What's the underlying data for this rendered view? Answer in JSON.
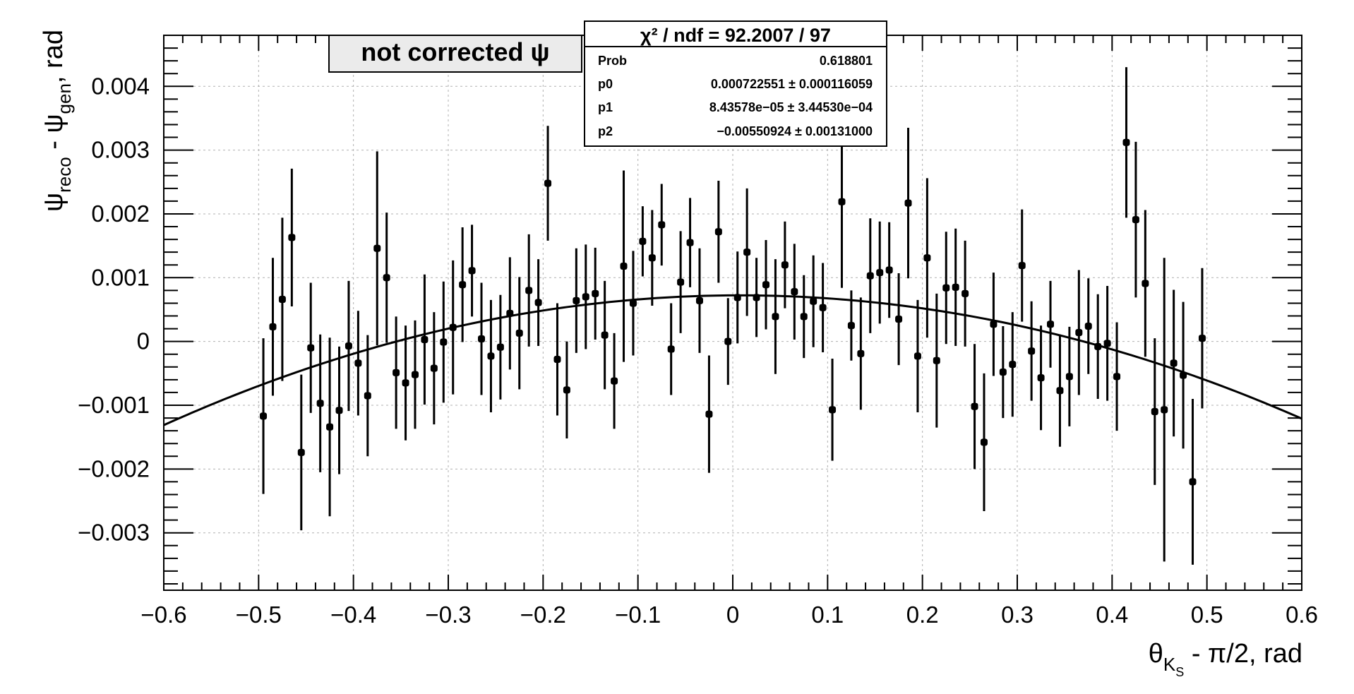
{
  "chart_data": {
    "type": "scatter",
    "xlabel": {
      "main": "θ",
      "sub": "K",
      "subsub": "S",
      "rest": " - π/2, rad"
    },
    "ylabel": {
      "psi1": "ψ",
      "sub1": "reco",
      "mid": " - ψ",
      "sub2": "gen",
      "rest": ", rad"
    },
    "xlim": [
      -0.6,
      0.6
    ],
    "ylim": [
      -0.0039,
      0.0048
    ],
    "xticks": [
      -0.6,
      -0.5,
      -0.4,
      -0.3,
      -0.2,
      -0.1,
      0,
      0.1,
      0.2,
      0.3,
      0.4,
      0.5,
      0.6
    ],
    "xtick_labels": [
      "−0.6",
      "−0.5",
      "−0.4",
      "−0.3",
      "−0.2",
      "−0.1",
      "0",
      "0.1",
      "0.2",
      "0.3",
      "0.4",
      "0.5",
      "0.6"
    ],
    "yticks": [
      -0.003,
      -0.002,
      -0.001,
      0,
      0.001,
      0.002,
      0.003,
      0.004
    ],
    "ytick_labels": [
      "−0.003",
      "−0.002",
      "−0.001",
      "0",
      "0.001",
      "0.002",
      "0.003",
      "0.004"
    ],
    "grid": true,
    "label_box": {
      "text": "not corrected ψ"
    },
    "stats": {
      "title": "χ² / ndf = 92.2007 / 97",
      "rows": [
        {
          "key": "Prob",
          "value": "0.618801"
        },
        {
          "key": "p0",
          "value": "0.000722551 ± 0.000116059"
        },
        {
          "key": "p1",
          "value": "8.43578e−05 ± 3.44530e−04"
        },
        {
          "key": "p2",
          "value": "−0.00550924 ± 0.00131000"
        }
      ]
    },
    "fit": {
      "p0": 0.000722551,
      "p1": 8.43578e-05,
      "p2": -0.00550924
    },
    "points": [
      [
        -0.495,
        -0.00117,
        0.00122
      ],
      [
        -0.485,
        0.00023,
        0.00108
      ],
      [
        -0.475,
        0.00066,
        0.00128
      ],
      [
        -0.465,
        0.00163,
        0.00108
      ],
      [
        -0.455,
        -0.00174,
        0.00122
      ],
      [
        -0.445,
        -0.0001,
        0.00102
      ],
      [
        -0.435,
        -0.00097,
        0.00108
      ],
      [
        -0.425,
        -0.00134,
        0.0014
      ],
      [
        -0.415,
        -0.00108,
        0.001
      ],
      [
        -0.405,
        -7e-05,
        0.00102
      ],
      [
        -0.395,
        -0.00034,
        0.00082
      ],
      [
        -0.385,
        -0.00085,
        0.00095
      ],
      [
        -0.375,
        0.00146,
        0.00152
      ],
      [
        -0.365,
        0.001,
        0.00102
      ],
      [
        -0.355,
        -0.00049,
        0.00088
      ],
      [
        -0.345,
        -0.00065,
        0.0009
      ],
      [
        -0.335,
        -0.00052,
        0.00085
      ],
      [
        -0.325,
        3e-05,
        0.00102
      ],
      [
        -0.315,
        -0.00042,
        0.00088
      ],
      [
        -0.305,
        -1e-05,
        0.00095
      ],
      [
        -0.295,
        0.00022,
        0.00105
      ],
      [
        -0.285,
        0.00089,
        0.0009
      ],
      [
        -0.275,
        0.00111,
        0.00072
      ],
      [
        -0.265,
        4e-05,
        0.00088
      ],
      [
        -0.255,
        -0.00023,
        0.00088
      ],
      [
        -0.245,
        -9e-05,
        0.00082
      ],
      [
        -0.235,
        0.00044,
        0.00088
      ],
      [
        -0.225,
        0.00013,
        0.00088
      ],
      [
        -0.215,
        0.0008,
        0.00088
      ],
      [
        -0.205,
        0.00061,
        0.00068
      ],
      [
        -0.195,
        0.00248,
        0.0009
      ],
      [
        -0.185,
        -0.00028,
        0.00088
      ],
      [
        -0.175,
        -0.00076,
        0.00076
      ],
      [
        -0.165,
        0.00064,
        0.00082
      ],
      [
        -0.155,
        0.0007,
        0.00082
      ],
      [
        -0.145,
        0.00075,
        0.00072
      ],
      [
        -0.135,
        0.0001,
        0.00085
      ],
      [
        -0.125,
        -0.00062,
        0.00075
      ],
      [
        -0.115,
        0.00118,
        0.0015
      ],
      [
        -0.105,
        0.0006,
        0.00082
      ],
      [
        -0.095,
        0.00157,
        0.00055
      ],
      [
        -0.085,
        0.00131,
        0.00075
      ],
      [
        -0.075,
        0.00183,
        0.00064
      ],
      [
        -0.065,
        -0.00012,
        0.00072
      ],
      [
        -0.055,
        0.00093,
        0.0008
      ],
      [
        -0.045,
        0.00155,
        0.0007
      ],
      [
        -0.035,
        0.00064,
        0.00082
      ],
      [
        -0.025,
        -0.00114,
        0.00092
      ],
      [
        -0.015,
        0.00172,
        0.0008
      ],
      [
        -0.005,
        0.0,
        0.00068
      ],
      [
        0.005,
        0.00069,
        0.00072
      ],
      [
        0.015,
        0.0014,
        0.001
      ],
      [
        0.025,
        0.00069,
        0.00062
      ],
      [
        0.035,
        0.00089,
        0.0007
      ],
      [
        0.045,
        0.00039,
        0.0009
      ],
      [
        0.055,
        0.0012,
        0.00068
      ],
      [
        0.065,
        0.00078,
        0.00075
      ],
      [
        0.075,
        0.00039,
        0.00065
      ],
      [
        0.085,
        0.00063,
        0.00072
      ],
      [
        0.095,
        0.00053,
        0.0007
      ],
      [
        0.105,
        -0.00107,
        0.0008
      ],
      [
        0.115,
        0.00219,
        0.00135
      ],
      [
        0.125,
        0.00025,
        0.00055
      ],
      [
        0.135,
        -0.00019,
        0.00088
      ],
      [
        0.145,
        0.00103,
        0.0009
      ],
      [
        0.155,
        0.00108,
        0.0008
      ],
      [
        0.165,
        0.00112,
        0.00075
      ],
      [
        0.175,
        0.00035,
        0.00072
      ],
      [
        0.185,
        0.00217,
        0.00118
      ],
      [
        0.195,
        -0.00023,
        0.00088
      ],
      [
        0.205,
        0.00131,
        0.00125
      ],
      [
        0.215,
        -0.0003,
        0.00105
      ],
      [
        0.225,
        0.00084,
        0.00088
      ],
      [
        0.235,
        0.00085,
        0.00092
      ],
      [
        0.245,
        0.00075,
        0.00083
      ],
      [
        0.255,
        -0.00102,
        0.00098
      ],
      [
        0.265,
        -0.00158,
        0.00108
      ],
      [
        0.275,
        0.00027,
        0.00081
      ],
      [
        0.285,
        -0.00048,
        0.00072
      ],
      [
        0.295,
        -0.00036,
        0.00082
      ],
      [
        0.305,
        0.00119,
        0.00088
      ],
      [
        0.315,
        -0.00015,
        0.00078
      ],
      [
        0.325,
        -0.00057,
        0.00082
      ],
      [
        0.335,
        0.00027,
        0.00068
      ],
      [
        0.345,
        -0.00077,
        0.00088
      ],
      [
        0.355,
        -0.00055,
        0.00078
      ],
      [
        0.365,
        0.00014,
        0.00098
      ],
      [
        0.375,
        0.00024,
        0.00075
      ],
      [
        0.385,
        -8e-05,
        0.00082
      ],
      [
        0.395,
        -3e-05,
        0.0009
      ],
      [
        0.405,
        -0.00055,
        0.00085
      ],
      [
        0.415,
        0.00312,
        0.00118
      ],
      [
        0.425,
        0.00191,
        0.00122
      ],
      [
        0.435,
        0.00091,
        0.00115
      ],
      [
        0.445,
        -0.0011,
        0.00115
      ],
      [
        0.455,
        -0.00107,
        0.00238
      ],
      [
        0.465,
        -0.00034,
        0.00115
      ],
      [
        0.475,
        -0.00053,
        0.00115
      ],
      [
        0.485,
        -0.0022,
        0.0013
      ],
      [
        0.495,
        5e-05,
        0.0011
      ]
    ]
  }
}
